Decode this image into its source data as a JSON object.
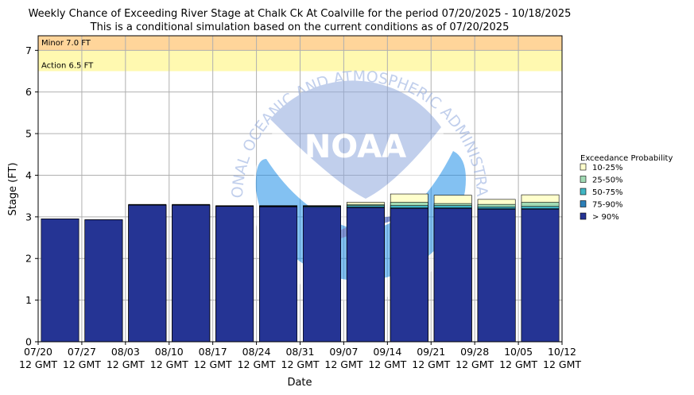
{
  "chart_data": {
    "type": "bar",
    "title": "Weekly Chance of Exceeding River Stage at Chalk Ck At Coalville for the period 07/20/2025 - 10/18/2025",
    "subtitle": "This is a conditional simulation based on the current conditions as of 07/20/2025",
    "xlabel": "Date",
    "ylabel": "Stage (FT)",
    "ylim": [
      0,
      7.35
    ],
    "yticks": [
      0,
      1,
      2,
      3,
      4,
      5,
      6,
      7
    ],
    "grid": true,
    "legend_position": "right",
    "x_tick_labels": [
      {
        "date": "07/20",
        "time": "12 GMT"
      },
      {
        "date": "07/27",
        "time": "12 GMT"
      },
      {
        "date": "08/03",
        "time": "12 GMT"
      },
      {
        "date": "08/10",
        "time": "12 GMT"
      },
      {
        "date": "08/17",
        "time": "12 GMT"
      },
      {
        "date": "08/24",
        "time": "12 GMT"
      },
      {
        "date": "08/31",
        "time": "12 GMT"
      },
      {
        "date": "09/07",
        "time": "12 GMT"
      },
      {
        "date": "09/14",
        "time": "12 GMT"
      },
      {
        "date": "09/21",
        "time": "12 GMT"
      },
      {
        "date": "09/28",
        "time": "12 GMT"
      },
      {
        "date": "10/05",
        "time": "12 GMT"
      },
      {
        "date": "10/12",
        "time": "12 GMT"
      }
    ],
    "flood_levels": [
      {
        "label": "Minor 7.0 FT",
        "value": 7.0,
        "color": "#ffd59a"
      },
      {
        "label": "Action 6.5 FT",
        "value": 6.5,
        "color": "#fff9b0"
      }
    ],
    "legend_title": "Exceedance Probability",
    "series": [
      {
        "name": "10-25%",
        "color": "#ffffcc",
        "values": [
          2.95,
          2.93,
          3.3,
          3.3,
          3.27,
          3.27,
          3.27,
          3.35,
          3.55,
          3.52,
          3.42,
          3.53
        ]
      },
      {
        "name": "25-50%",
        "color": "#a1dab4",
        "values": [
          2.95,
          2.93,
          3.29,
          3.29,
          3.26,
          3.26,
          3.26,
          3.3,
          3.35,
          3.32,
          3.3,
          3.35
        ]
      },
      {
        "name": "50-75%",
        "color": "#41b6c4",
        "values": [
          2.95,
          2.93,
          3.29,
          3.29,
          3.26,
          3.26,
          3.26,
          3.27,
          3.27,
          3.27,
          3.24,
          3.25
        ]
      },
      {
        "name": "75-90%",
        "color": "#2c7fb8",
        "values": [
          2.95,
          2.93,
          3.28,
          3.28,
          3.25,
          3.25,
          3.25,
          3.24,
          3.22,
          3.22,
          3.2,
          3.2
        ]
      },
      {
        "name": "> 90%",
        "color": "#253494",
        "values": [
          2.95,
          2.93,
          3.28,
          3.28,
          3.25,
          3.24,
          3.23,
          3.22,
          3.2,
          3.2,
          3.18,
          3.18
        ]
      }
    ]
  }
}
